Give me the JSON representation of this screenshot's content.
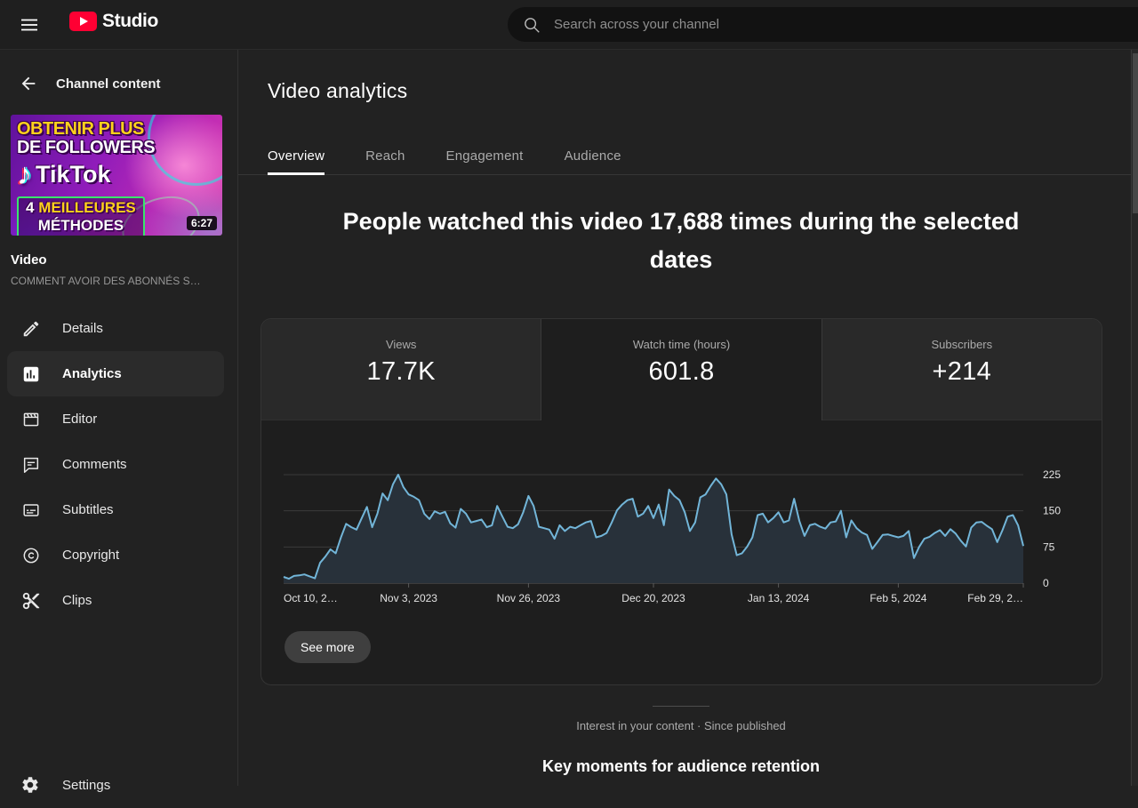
{
  "colors": {
    "brand_red": "#ff0033",
    "chart_line": "#72b5d8",
    "chart_fill": "#28313a",
    "grid_line": "#3b3b3b",
    "axis_label": "#e3e3e3"
  },
  "topbar": {
    "logo_text": "Studio",
    "search_placeholder": "Search across your channel"
  },
  "sidebar": {
    "back_label": "Channel content",
    "thumbnail": {
      "line1": "OBTENIR PLUS",
      "line2": "DE FOLLOWERS",
      "note_glyph": "♪",
      "tiktok": "TikTok",
      "line3_num": "4 ",
      "line3": "MEILLEURES",
      "line4": "MÉTHODES",
      "duration": "6:27"
    },
    "video_type_label": "Video",
    "video_title": "COMMENT AVOIR DES ABONNÉS S…",
    "items": [
      {
        "label": "Details",
        "icon": "pencil-icon",
        "active": false
      },
      {
        "label": "Analytics",
        "icon": "bar-chart-icon",
        "active": true
      },
      {
        "label": "Editor",
        "icon": "clapperboard-icon",
        "active": false
      },
      {
        "label": "Comments",
        "icon": "comment-icon",
        "active": false
      },
      {
        "label": "Subtitles",
        "icon": "subtitles-icon",
        "active": false
      },
      {
        "label": "Copyright",
        "icon": "copyright-icon",
        "active": false
      },
      {
        "label": "Clips",
        "icon": "scissors-icon",
        "active": false
      }
    ],
    "settings_label": "Settings"
  },
  "main": {
    "page_title": "Video analytics",
    "tabs": [
      {
        "label": "Overview",
        "active": true
      },
      {
        "label": "Reach",
        "active": false
      },
      {
        "label": "Engagement",
        "active": false
      },
      {
        "label": "Audience",
        "active": false
      }
    ],
    "headline": "People watched this video 17,688 times during the selected dates",
    "metrics": [
      {
        "label": "Views",
        "value": "17.7K",
        "selected": false
      },
      {
        "label": "Watch time (hours)",
        "value": "601.8",
        "selected": true
      },
      {
        "label": "Subscribers",
        "value": "+214",
        "selected": false
      }
    ],
    "see_more_label": "See more",
    "footer_note": "Interest in your content · Since published",
    "next_section_title": "Key moments for audience retention"
  },
  "chart_data": {
    "type": "area",
    "title": "",
    "xlabel": "",
    "ylabel": "",
    "ylim": [
      0,
      249
    ],
    "grid": true,
    "y_ticks": [
      0,
      75,
      150,
      225
    ],
    "x_labels": [
      "Oct 10, 2…",
      "Nov 3, 2023",
      "Nov 26, 2023",
      "Dec 20, 2023",
      "Jan 13, 2024",
      "Feb 5, 2024",
      "Feb 29, 2…"
    ],
    "label_indices": [
      0,
      24,
      47,
      71,
      95,
      118,
      142
    ],
    "values": [
      13,
      9,
      15,
      16,
      18,
      14,
      10,
      42,
      55,
      70,
      62,
      95,
      123,
      116,
      111,
      135,
      158,
      116,
      144,
      186,
      172,
      205,
      225,
      199,
      184,
      179,
      172,
      144,
      133,
      149,
      144,
      148,
      124,
      115,
      154,
      144,
      126,
      129,
      132,
      116,
      120,
      160,
      138,
      117,
      114,
      122,
      147,
      181,
      160,
      117,
      114,
      111,
      92,
      120,
      108,
      117,
      114,
      120,
      126,
      129,
      95,
      98,
      104,
      126,
      151,
      163,
      172,
      175,
      138,
      144,
      160,
      135,
      163,
      120,
      194,
      181,
      172,
      147,
      108,
      126,
      178,
      184,
      202,
      217,
      205,
      184,
      101,
      58,
      62,
      76,
      95,
      141,
      144,
      126,
      135,
      147,
      126,
      130,
      175,
      129,
      98,
      120,
      123,
      117,
      113,
      126,
      128,
      150,
      95,
      130,
      114,
      105,
      100,
      71,
      85,
      100,
      101,
      98,
      95,
      98,
      108,
      52,
      75,
      92,
      96,
      104,
      110,
      98,
      112,
      103,
      88,
      76,
      115,
      126,
      127,
      119,
      112,
      85,
      110,
      138,
      141,
      120,
      77
    ]
  }
}
